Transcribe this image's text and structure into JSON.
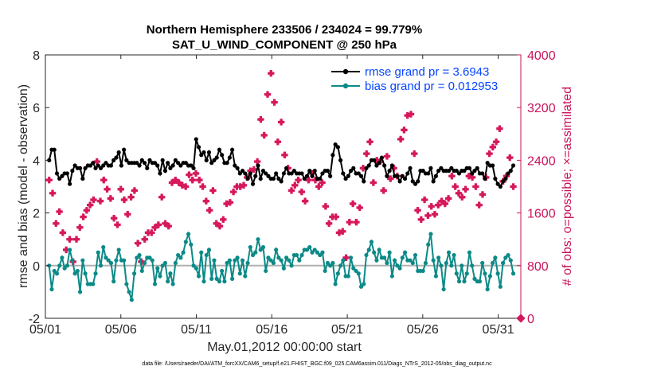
{
  "chart_data": {
    "type": "line",
    "title_line1": "Northern Hemisphere 233506 / 234024 = 99.779%",
    "title_line2": "SAT_U_WIND_COMPONENT @ 250 hPa",
    "xlabel": "May.01,2012 00:00:00 start",
    "ylabel_left": "rmse and bias (model - observation)",
    "ylabel_right": "# of obs: o=possible; ×=assimilated",
    "ylim_left": [
      -2,
      8
    ],
    "ylim_right": [
      0,
      4000
    ],
    "xlim": [
      0,
      31.5
    ],
    "x_ticks": [
      0,
      5,
      10,
      15,
      20,
      25,
      30
    ],
    "x_tick_labels": [
      "05/01",
      "05/06",
      "05/11",
      "05/16",
      "05/21",
      "05/26",
      "05/31"
    ],
    "y_left_ticks": [
      "-2",
      "0",
      "2",
      "4",
      "6",
      "8"
    ],
    "y_right_ticks": [
      "0",
      "800",
      "1600",
      "2400",
      "3200",
      "4000"
    ],
    "colors": {
      "rmse": "#000000",
      "bias": "#0b8a87",
      "obs": "#d6185c",
      "zero": "#b0b0b0",
      "right_axis": "#c8145a",
      "legend_text": "#0645ff"
    },
    "series": [
      {
        "name": "rmse grand pr = 3.6943",
        "axis": "left",
        "values": [
          4.0,
          4.4,
          4.4,
          3.5,
          3.3,
          3.4,
          3.5,
          3.5,
          3.1,
          3.6,
          3.8,
          3.7,
          3.7,
          3.3,
          3.7,
          3.8,
          3.8,
          3.9,
          3.7,
          3.8,
          3.7,
          3.8,
          3.9,
          3.8,
          3.8,
          4.0,
          4.1,
          4.3,
          3.8,
          4.4,
          4.0,
          3.9,
          3.9,
          3.9,
          3.9,
          3.8,
          4.0,
          3.9,
          3.7,
          4.0,
          3.9,
          3.9,
          3.8,
          3.5,
          4.0,
          3.6,
          3.9,
          3.7,
          3.8,
          4.0,
          3.9,
          3.8,
          3.9,
          3.9,
          3.8,
          3.8,
          3.7,
          4.8,
          4.5,
          4.2,
          4.3,
          4.0,
          4.3,
          3.9,
          4.0,
          4.1,
          4.4,
          4.2,
          3.9,
          3.9,
          4.1,
          4.4,
          3.8,
          3.7,
          3.5,
          3.6,
          3.5,
          3.3,
          3.5,
          3.1,
          3.4,
          3.8,
          3.3,
          3.6,
          3.5,
          3.4,
          3.3,
          3.3,
          3.5,
          3.3,
          3.2,
          3.5,
          3.7,
          3.5,
          3.5,
          3.6,
          3.5,
          3.5,
          3.5,
          3.3,
          3.4,
          3.6,
          3.4,
          3.6,
          3.3,
          3.3,
          3.5,
          3.6,
          3.6,
          3.4,
          4.2,
          4.6,
          4.5,
          4.0,
          3.5,
          3.3,
          3.4,
          3.6,
          3.7,
          3.5,
          3.5,
          3.4,
          3.2,
          3.7,
          3.8,
          4.0,
          4.0,
          3.8,
          3.9,
          4.1,
          3.8,
          3.4,
          3.6,
          3.8,
          3.4,
          3.4,
          3.2,
          3.4,
          3.3,
          3.5,
          3.7,
          3.2,
          3.1,
          3.2,
          3.6,
          3.6,
          3.5,
          3.5,
          3.7,
          3.2,
          3.4,
          3.6,
          3.7,
          3.6,
          3.6,
          3.6,
          3.7,
          3.6,
          3.6,
          3.5,
          3.6,
          3.6,
          3.7,
          3.7,
          3.5,
          3.6,
          3.7,
          3.5,
          3.5,
          3.3,
          3.9,
          3.8,
          3.8,
          3.3,
          3.1,
          3.0,
          3.2,
          3.3,
          3.5,
          3.6,
          3.8
        ]
      },
      {
        "name": "bias grand pr = 0.012953",
        "axis": "left",
        "values": [
          0.0,
          -0.9,
          -0.2,
          -0.3,
          0.0,
          0.3,
          -0.1,
          0.0,
          0.6,
          0.2,
          -0.3,
          -0.2,
          -1.0,
          0.2,
          -0.3,
          -0.7,
          -0.7,
          -0.7,
          -0.3,
          0.5,
          0.0,
          0.7,
          0.3,
          0.2,
          0.1,
          -0.6,
          0.2,
          0.6,
          0.2,
          0.2,
          -0.7,
          -1.0,
          -1.3,
          -0.3,
          0.3,
          0.4,
          -0.2,
          0.1,
          0.3,
          0.3,
          0.2,
          -0.7,
          -0.1,
          -0.4,
          0.0,
          0.1,
          -0.6,
          -0.3,
          -0.7,
          0.1,
          0.4,
          0.3,
          0.5,
          0.9,
          1.2,
          0.8,
          0.0,
          -0.1,
          -0.4,
          0.5,
          -0.6,
          0.4,
          0.6,
          -0.5,
          0.2,
          -0.5,
          -0.6,
          -0.2,
          -0.6,
          0.1,
          0.2,
          -0.5,
          0.2,
          0.3,
          -0.3,
          0.2,
          -0.4,
          0.1,
          0.7,
          0.4,
          0.5,
          1.0,
          0.6,
          0.7,
          -0.2,
          0.3,
          0.2,
          0.1,
          0.6,
          0.3,
          0.2,
          -0.1,
          0.3,
          0.2,
          0.0,
          0.4,
          0.4,
          0.2,
          0.4,
          0.6,
          0.6,
          0.7,
          0.5,
          0.6,
          0.5,
          0.4,
          0.5,
          -0.2,
          0.1,
          0.0,
          0.1,
          -0.7,
          -0.3,
          0.0,
          0.2,
          -0.4,
          -0.4,
          0.3,
          -0.1,
          -0.2,
          -0.3,
          -0.8,
          -0.7,
          0.4,
          0.6,
          0.9,
          0.5,
          0.2,
          0.6,
          0.3,
          0.3,
          0.1,
          0.5,
          -0.4,
          0.2,
          0.0,
          -0.1,
          0.3,
          0.5,
          0.2,
          0.2,
          0.1,
          0.4,
          -0.2,
          -0.2,
          -0.2,
          0.1,
          0.8,
          1.2,
          0.2,
          -0.4,
          0.3,
          0.0,
          -0.9,
          0.1,
          0.5,
          0.0,
          0.4,
          -0.3,
          -0.6,
          0.0,
          -0.6,
          -0.3,
          0.5,
          0.0,
          -0.5,
          -0.6,
          -0.6,
          0.1,
          -0.3,
          -0.9,
          -0.4,
          0.1,
          0.3,
          -0.3,
          -0.8,
          0.1,
          0.3,
          0.4,
          0.2,
          -0.3
        ]
      },
      {
        "name": "assimilated obs",
        "axis": "right",
        "values": [
          2100,
          1900,
          1440,
          1620,
          1300,
          1040,
          1200,
          860,
          1200,
          1380,
          1540,
          1640,
          1720,
          1800,
          2380,
          1780,
          2100,
          1960,
          1820,
          1520,
          1420,
          1960,
          1800,
          1580,
          1840,
          1940,
          1140,
          860,
          1200,
          1300,
          1300,
          1380,
          1420,
          1840,
          1440,
          1400,
          2060,
          2100,
          2060,
          2020,
          2000,
          2180,
          2100,
          2200,
          2100,
          2000,
          1780,
          1640,
          1940,
          1440,
          1400,
          1500,
          1740,
          1760,
          1920,
          2000,
          2000,
          2020,
          2140,
          2240,
          2260,
          2380,
          3020,
          2780,
          3400,
          3720,
          3280,
          2680,
          2980,
          2480,
          2280,
          1940,
          2020,
          2100,
          1920,
          1780,
          2100,
          2200,
          2100,
          2000,
          2060,
          1700,
          1440,
          1540,
          1540,
          1300,
          1320,
          920,
          1460,
          1740,
          1460,
          1680,
          2280,
          2500,
          2680,
          2060,
          2400,
          2380,
          1940,
          2460,
          2120,
          2280,
          2160,
          2720,
          2860,
          3080,
          3100,
          2500,
          1640,
          1500,
          1800,
          1560,
          1700,
          1580,
          1720,
          1780,
          1740,
          1820,
          2160,
          2000,
          1900,
          1840,
          1960,
          2160,
          2140,
          2000,
          1720,
          1880,
          2140,
          2500,
          2600,
          2680,
          2880,
          2080,
          2160,
          2440,
          2000
        ]
      }
    ]
  },
  "footer": {
    "text": "data file: /Users/raeder/DAI/ATM_forcXX/CAM6_setup/f.e21.FHIST_BGC.f09_025.CAM6assim.011/Diags_NTrS_2012-05/obs_diag_output.nc"
  }
}
